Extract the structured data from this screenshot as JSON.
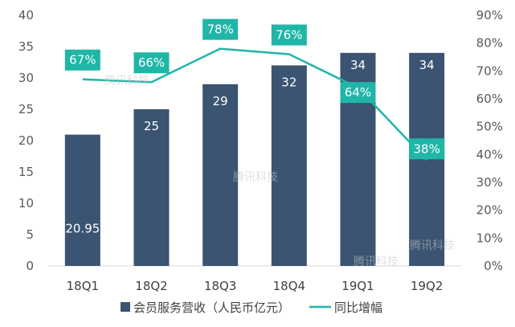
{
  "chart_data": {
    "type": "bar+line",
    "categories": [
      "18Q1",
      "18Q2",
      "18Q3",
      "18Q4",
      "19Q1",
      "19Q2"
    ],
    "series": [
      {
        "name": "会员服务营收（人民币亿元）",
        "type": "bar",
        "axis": "left",
        "values": [
          20.95,
          25,
          29,
          32,
          34,
          34
        ],
        "labels": [
          "20.95",
          "25",
          "29",
          "32",
          "34",
          "34"
        ],
        "color": "#3a5472"
      },
      {
        "name": "同比增幅",
        "type": "line",
        "axis": "right",
        "values": [
          67,
          66,
          78,
          76,
          64,
          38
        ],
        "labels": [
          "67%",
          "66%",
          "78%",
          "76%",
          "64%",
          "38%"
        ],
        "color": "#1fb6a7"
      }
    ],
    "left_axis": {
      "ylim": [
        0,
        40
      ],
      "ticks": [
        "0",
        "5",
        "10",
        "15",
        "20",
        "25",
        "30",
        "35",
        "40"
      ]
    },
    "right_axis": {
      "ylim": [
        0,
        90
      ],
      "ticks": [
        "0%",
        "10%",
        "20%",
        "30%",
        "40%",
        "50%",
        "60%",
        "70%",
        "80%",
        "90%"
      ]
    },
    "legend_position": "bottom",
    "grid": false
  },
  "watermark": "腾讯科技"
}
